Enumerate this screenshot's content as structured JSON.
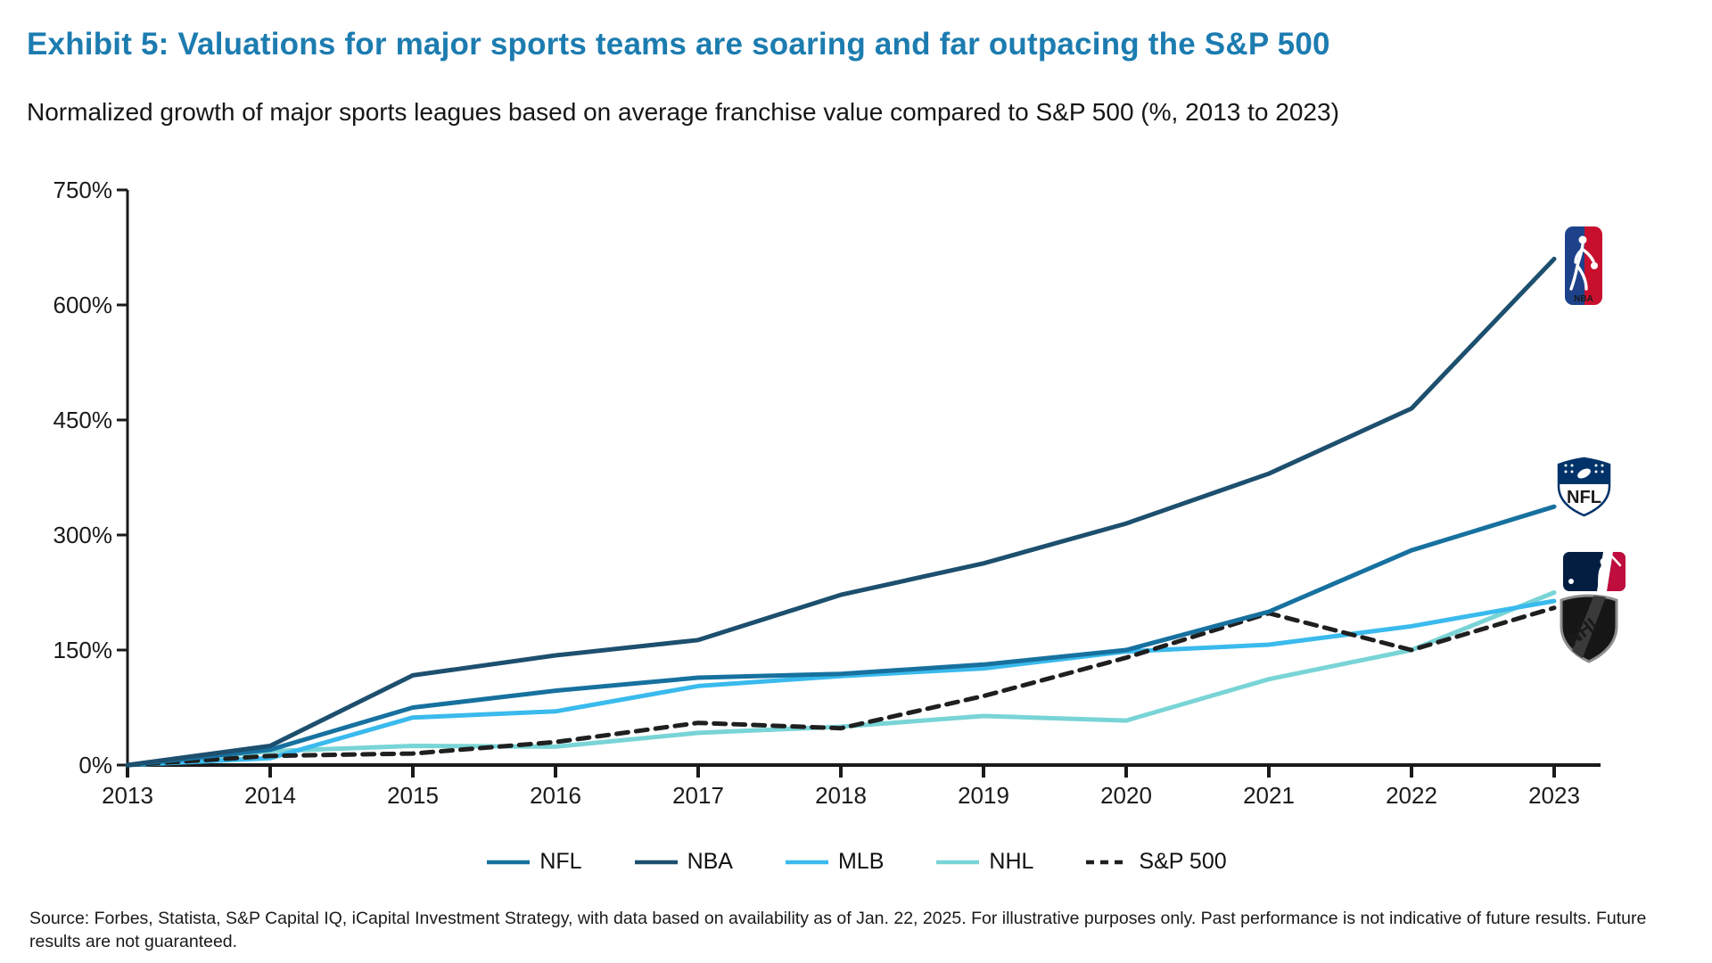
{
  "header": {
    "title": "Exhibit 5: Valuations for major sports teams are soaring and far outpacing the S&P 500",
    "subtitle": "Normalized growth of major sports leagues based on average franchise value compared to S&P 500 (%, 2013 to 2023)"
  },
  "chart_data": {
    "type": "line",
    "title": "Exhibit 5: Valuations for major sports teams are soaring and far outpacing the S&P 500",
    "xlabel": "",
    "ylabel": "",
    "x": [
      2013,
      2014,
      2015,
      2016,
      2017,
      2018,
      2019,
      2020,
      2021,
      2022,
      2023
    ],
    "x_tick_labels": [
      "2013",
      "2014",
      "2015",
      "2016",
      "2017",
      "2018",
      "2019",
      "2020",
      "2021",
      "2022",
      "2023"
    ],
    "y_tick_labels": [
      "0%",
      "150%",
      "300%",
      "450%",
      "600%",
      "750%"
    ],
    "y_tick_values": [
      0,
      150,
      300,
      450,
      600,
      750
    ],
    "ylim": [
      0,
      750
    ],
    "grid": false,
    "legend_position": "bottom",
    "series": [
      {
        "name": "NFL",
        "color": "#17719f",
        "dash": null,
        "values": [
          0,
          20,
          75,
          97,
          114,
          119,
          131,
          150,
          200,
          280,
          337
        ]
      },
      {
        "name": "NBA",
        "color": "#1d4f6e",
        "dash": null,
        "values": [
          0,
          25,
          117,
          143,
          163,
          222,
          263,
          315,
          380,
          465,
          660
        ]
      },
      {
        "name": "MLB",
        "color": "#3abaed",
        "dash": null,
        "values": [
          0,
          9,
          62,
          70,
          103,
          116,
          126,
          148,
          157,
          181,
          214
        ]
      },
      {
        "name": "NHL",
        "color": "#79d4d6",
        "dash": null,
        "values": [
          0,
          18,
          25,
          24,
          42,
          50,
          64,
          58,
          112,
          150,
          225
        ]
      },
      {
        "name": "S&P 500",
        "color": "#1f1f1f",
        "dash": "13 9",
        "values": [
          0,
          12,
          15,
          30,
          55,
          48,
          90,
          140,
          198,
          150,
          205
        ]
      }
    ],
    "end_logos": [
      "NBA",
      "NFL",
      "MLB",
      "NHL"
    ]
  },
  "legend": {
    "items": [
      {
        "label": "NFL"
      },
      {
        "label": "NBA"
      },
      {
        "label": "MLB"
      },
      {
        "label": "NHL"
      },
      {
        "label": "S&P 500"
      }
    ]
  },
  "footer": {
    "source": "Source: Forbes, Statista, S&P Capital IQ, iCapital Investment Strategy, with data based on availability as of Jan. 22, 2025. For illustrative purposes only. Past performance is not indicative of future results. Future results are not guaranteed."
  }
}
